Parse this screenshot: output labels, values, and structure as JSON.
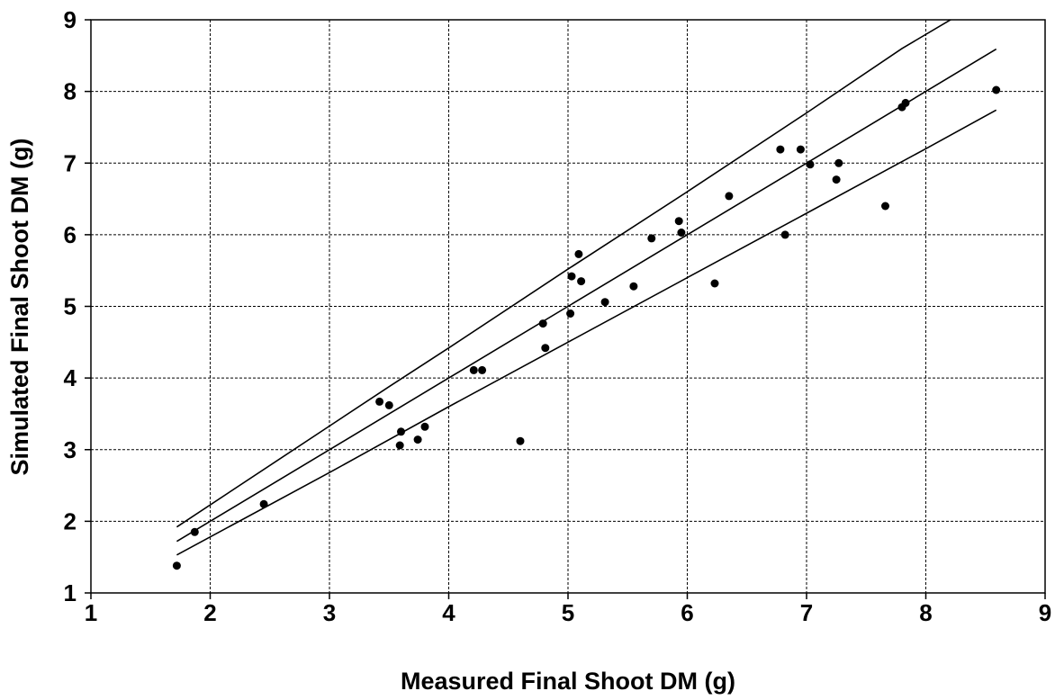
{
  "chart_data": {
    "type": "scatter",
    "title": "",
    "xlabel": "Measured Final Shoot DM (g)",
    "ylabel": "Simulated Final Shoot DM (g)",
    "xlim": [
      1,
      9
    ],
    "ylim": [
      1,
      9
    ],
    "xticks": [
      "1",
      "2",
      "3",
      "4",
      "5",
      "6",
      "7",
      "8",
      "9"
    ],
    "yticks": [
      "1",
      "2",
      "3",
      "4",
      "5",
      "6",
      "7",
      "8",
      "9"
    ],
    "grid": true,
    "grid_style": "dashed",
    "legend": "none",
    "colors": {
      "points": "#000000",
      "lines": "#000000",
      "grid": "#000000",
      "background": "#ffffff"
    },
    "series": [
      {
        "kind": "points",
        "points": [
          [
            1.72,
            1.38
          ],
          [
            1.87,
            1.85
          ],
          [
            2.45,
            2.24
          ],
          [
            3.42,
            3.67
          ],
          [
            3.5,
            3.62
          ],
          [
            3.6,
            3.25
          ],
          [
            3.59,
            3.06
          ],
          [
            3.74,
            3.14
          ],
          [
            3.8,
            3.32
          ],
          [
            4.21,
            4.11
          ],
          [
            4.28,
            4.11
          ],
          [
            4.6,
            3.12
          ],
          [
            4.79,
            4.76
          ],
          [
            4.81,
            4.42
          ],
          [
            5.02,
            4.9
          ],
          [
            5.03,
            5.42
          ],
          [
            5.09,
            5.73
          ],
          [
            5.11,
            5.35
          ],
          [
            5.31,
            5.06
          ],
          [
            5.55,
            5.28
          ],
          [
            5.7,
            5.95
          ],
          [
            5.93,
            6.19
          ],
          [
            5.95,
            6.03
          ],
          [
            6.23,
            5.32
          ],
          [
            6.35,
            6.54
          ],
          [
            6.78,
            7.19
          ],
          [
            6.82,
            6.0
          ],
          [
            6.95,
            7.19
          ],
          [
            7.03,
            6.98
          ],
          [
            7.25,
            6.77
          ],
          [
            7.27,
            7.0
          ],
          [
            7.66,
            6.4
          ],
          [
            7.8,
            7.78
          ],
          [
            7.83,
            7.84
          ],
          [
            8.59,
            8.02
          ]
        ]
      },
      {
        "kind": "line",
        "points": [
          [
            1.72,
            1.72
          ],
          [
            3.0,
            3.0
          ],
          [
            4.0,
            4.0
          ],
          [
            5.0,
            5.0
          ],
          [
            6.0,
            6.0
          ],
          [
            7.0,
            7.0
          ],
          [
            8.0,
            8.0
          ],
          [
            8.59,
            8.59
          ]
        ]
      },
      {
        "kind": "line",
        "points": [
          [
            1.72,
            1.92
          ],
          [
            3.0,
            3.33
          ],
          [
            3.5,
            3.88
          ],
          [
            4.0,
            4.42
          ],
          [
            5.0,
            5.52
          ],
          [
            6.0,
            6.6
          ],
          [
            7.0,
            7.7
          ],
          [
            7.8,
            8.6
          ],
          [
            8.33,
            9.12
          ]
        ]
      },
      {
        "kind": "line",
        "points": [
          [
            1.72,
            1.53
          ],
          [
            3.0,
            2.68
          ],
          [
            4.0,
            3.6
          ],
          [
            5.0,
            4.5
          ],
          [
            6.0,
            5.4
          ],
          [
            7.0,
            6.3
          ],
          [
            8.0,
            7.2
          ],
          [
            8.59,
            7.74
          ]
        ]
      }
    ]
  }
}
